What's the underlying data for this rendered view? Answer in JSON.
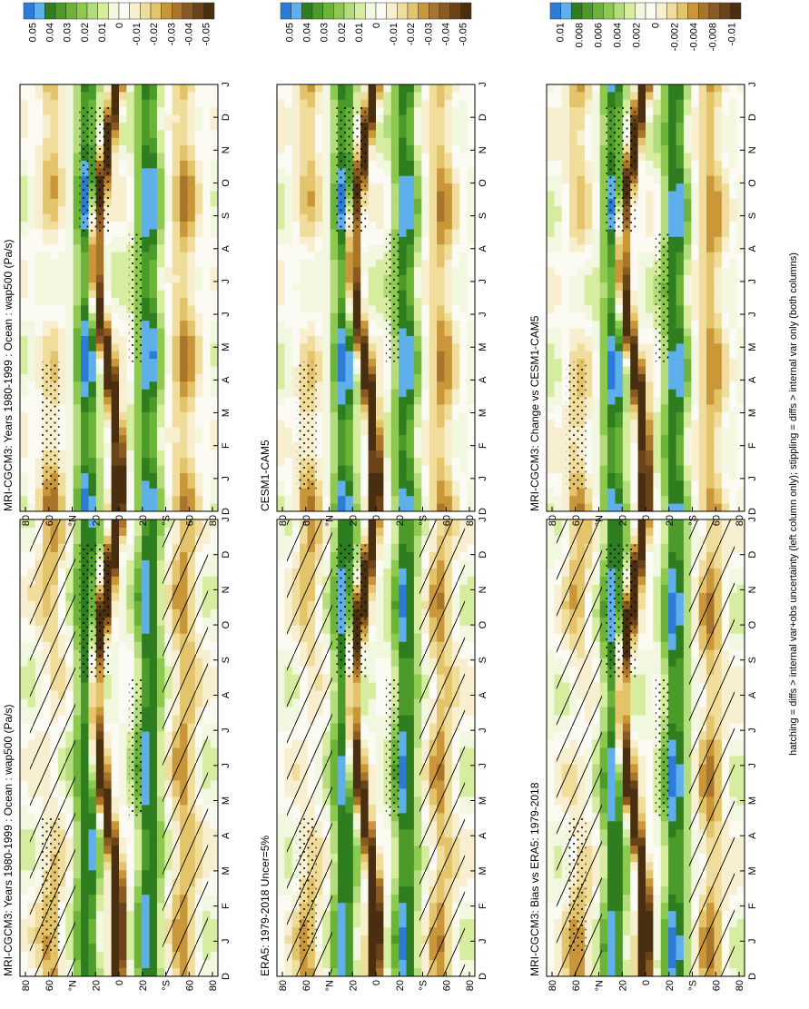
{
  "footnote": "hatching = diffs > internal var+obs uncertainty (left column only); stippling = diffs > internal var only (both columns)",
  "chart_data": [
    {
      "type": "heatmap",
      "title": "MRI-CGCM3: Years 1980-1999 : Ocean : wap500 (Pa/s)",
      "x_ticks": [
        "D",
        "J",
        "F",
        "M",
        "A",
        "M",
        "J",
        "J",
        "A",
        "S",
        "O",
        "N",
        "D",
        "J"
      ],
      "y_ticks": [
        "80",
        "60",
        "°N",
        "20",
        "0",
        "20",
        "°S",
        "60",
        "80"
      ],
      "colorbar_labels": [
        "0.05",
        "0.04",
        "0.03",
        "0.02",
        "0.01",
        "0",
        "-0.01",
        "-0.02",
        "-0.03",
        "-0.04",
        "-0.05"
      ],
      "colorbar_colors": [
        "#2c7bd6",
        "#5fb0ea",
        "#2e7d1e",
        "#4c9a2a",
        "#6cb33a",
        "#8cc94e",
        "#b4dc7c",
        "#d6ec9e",
        "#f2f7e0",
        "#fbfbf4",
        "#f7efd0",
        "#f0dd9c",
        "#e4c46a",
        "#c9963a",
        "#a9752a",
        "#8a5a22",
        "#6a4418",
        "#4a2e10"
      ],
      "hatching": true,
      "stippling": true
    },
    {
      "type": "heatmap",
      "title": "MRI-CGCM3: Years 1980-1999 : Ocean : wap500 (Pa/s)",
      "x_ticks": [
        "D",
        "J",
        "F",
        "M",
        "A",
        "M",
        "J",
        "J",
        "A",
        "S",
        "O",
        "N",
        "D",
        "J"
      ],
      "y_ticks": [
        "80",
        "60",
        "°N",
        "20",
        "0",
        "20",
        "°S",
        "60",
        "80"
      ],
      "colorbar_labels": [
        "0.05",
        "0.04",
        "0.03",
        "0.02",
        "0.01",
        "0",
        "-0.01",
        "-0.02",
        "-0.03",
        "-0.04",
        "-0.05"
      ],
      "colorbar_colors": [
        "#2c7bd6",
        "#5fb0ea",
        "#2e7d1e",
        "#4c9a2a",
        "#6cb33a",
        "#8cc94e",
        "#b4dc7c",
        "#d6ec9e",
        "#f2f7e0",
        "#fbfbf4",
        "#f7efd0",
        "#f0dd9c",
        "#e4c46a",
        "#c9963a",
        "#a9752a",
        "#8a5a22",
        "#6a4418",
        "#4a2e10"
      ],
      "hatching": false,
      "stippling": true
    },
    {
      "type": "heatmap",
      "title": "ERA5: 1979-2018 Uncer=5%",
      "x_ticks": [
        "D",
        "J",
        "F",
        "M",
        "A",
        "M",
        "J",
        "J",
        "A",
        "S",
        "O",
        "N",
        "D",
        "J"
      ],
      "y_ticks": [
        "80",
        "60",
        "°N",
        "20",
        "0",
        "20",
        "°S",
        "60",
        "80"
      ],
      "colorbar_labels": [
        "0.05",
        "0.04",
        "0.03",
        "0.02",
        "0.01",
        "0",
        "-0.01",
        "-0.02",
        "-0.03",
        "-0.04",
        "-0.05"
      ],
      "colorbar_colors": [
        "#2c7bd6",
        "#5fb0ea",
        "#2e7d1e",
        "#4c9a2a",
        "#6cb33a",
        "#8cc94e",
        "#b4dc7c",
        "#d6ec9e",
        "#f2f7e0",
        "#fbfbf4",
        "#f7efd0",
        "#f0dd9c",
        "#e4c46a",
        "#c9963a",
        "#a9752a",
        "#8a5a22",
        "#6a4418",
        "#4a2e10"
      ],
      "hatching": true,
      "stippling": true
    },
    {
      "type": "heatmap",
      "title": "CESM1-CAM5",
      "x_ticks": [
        "D",
        "J",
        "F",
        "M",
        "A",
        "M",
        "J",
        "J",
        "A",
        "S",
        "O",
        "N",
        "D",
        "J"
      ],
      "y_ticks": [
        "80",
        "60",
        "°N",
        "20",
        "0",
        "20",
        "°S",
        "60",
        "80"
      ],
      "colorbar_labels": [
        "0.05",
        "0.04",
        "0.03",
        "0.02",
        "0.01",
        "0",
        "-0.01",
        "-0.02",
        "-0.03",
        "-0.04",
        "-0.05"
      ],
      "colorbar_colors": [
        "#2c7bd6",
        "#5fb0ea",
        "#2e7d1e",
        "#4c9a2a",
        "#6cb33a",
        "#8cc94e",
        "#b4dc7c",
        "#d6ec9e",
        "#f2f7e0",
        "#fbfbf4",
        "#f7efd0",
        "#f0dd9c",
        "#e4c46a",
        "#c9963a",
        "#a9752a",
        "#8a5a22",
        "#6a4418",
        "#4a2e10"
      ],
      "hatching": false,
      "stippling": true
    },
    {
      "type": "heatmap",
      "title": "MRI-CGCM3: Bias vs ERA5: 1979-2018",
      "x_ticks": [
        "D",
        "J",
        "F",
        "M",
        "A",
        "M",
        "J",
        "J",
        "A",
        "S",
        "O",
        "N",
        "D",
        "J"
      ],
      "y_ticks": [
        "80",
        "60",
        "°N",
        "20",
        "0",
        "20",
        "°S",
        "60",
        "80"
      ],
      "colorbar_labels": [
        "0.01",
        "0.008",
        "0.006",
        "0.004",
        "0.002",
        "0",
        "-0.002",
        "-0.004",
        "-0.008",
        "-0.01"
      ],
      "colorbar_colors": [
        "#2c7bd6",
        "#5fb0ea",
        "#2e7d1e",
        "#4c9a2a",
        "#6cb33a",
        "#8cc94e",
        "#b4dc7c",
        "#d6ec9e",
        "#f2f7e0",
        "#fbfbf4",
        "#f7efd0",
        "#f0dd9c",
        "#e4c46a",
        "#c9963a",
        "#a9752a",
        "#8a5a22",
        "#6a4418",
        "#4a2e10"
      ],
      "hatching": true,
      "stippling": true
    },
    {
      "type": "heatmap",
      "title": "MRI-CGCM3: Change vs CESM1-CAM5",
      "x_ticks": [
        "D",
        "J",
        "F",
        "M",
        "A",
        "M",
        "J",
        "J",
        "A",
        "S",
        "O",
        "N",
        "D",
        "J"
      ],
      "y_ticks": [
        "80",
        "60",
        "°N",
        "20",
        "0",
        "20",
        "°S",
        "60",
        "80"
      ],
      "colorbar_labels": [
        "0.01",
        "0.008",
        "0.006",
        "0.004",
        "0.002",
        "0",
        "-0.002",
        "-0.004",
        "-0.008",
        "-0.01"
      ],
      "colorbar_colors": [
        "#2c7bd6",
        "#5fb0ea",
        "#2e7d1e",
        "#4c9a2a",
        "#6cb33a",
        "#8cc94e",
        "#b4dc7c",
        "#d6ec9e",
        "#f2f7e0",
        "#fbfbf4",
        "#f7efd0",
        "#f0dd9c",
        "#e4c46a",
        "#c9963a",
        "#a9752a",
        "#8a5a22",
        "#6a4418",
        "#4a2e10"
      ],
      "hatching": false,
      "stippling": true
    }
  ]
}
